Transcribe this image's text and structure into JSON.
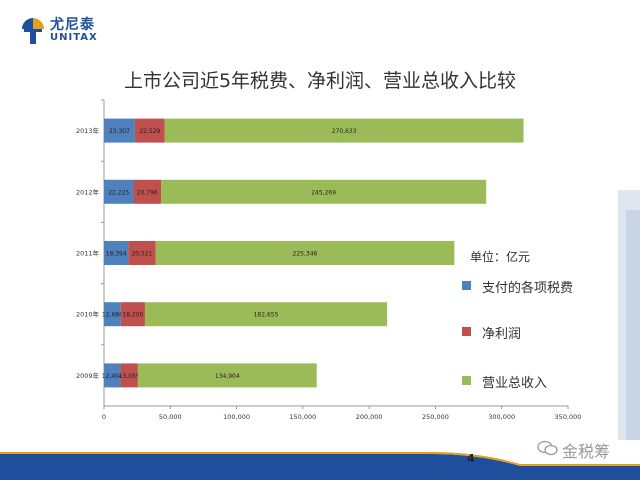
{
  "brand": {
    "name_cn": "尤尼泰",
    "name_en": "UNITAX",
    "color": "#1f4e9c",
    "accent": "#e0a020"
  },
  "title": "上市公司近5年税费、净利润、营业总收入比较",
  "unit": "单位：亿元",
  "page_number": "4",
  "watermark": "金税筹",
  "colors": {
    "tax": "#4f81bd",
    "profit": "#c0504d",
    "revenue": "#9bbb59"
  },
  "chart_data": {
    "type": "bar",
    "orientation": "horizontal",
    "stacked": true,
    "title": "上市公司近5年税费、净利润、营业总收入比较",
    "categories": [
      "2013年",
      "2012年",
      "2011年",
      "2010年",
      "2009年"
    ],
    "series": [
      {
        "name": "支付的各项税费",
        "color": "#4f81bd",
        "values": [
          23307,
          22225,
          18394,
          12686,
          12494
        ]
      },
      {
        "name": "净利润",
        "color": "#c0504d",
        "values": [
          22529,
          20796,
          20521,
          18200,
          13055
        ]
      },
      {
        "name": "营业总收入",
        "color": "#9bbb59",
        "values": [
          270633,
          245269,
          225346,
          182655,
          134904
        ]
      }
    ],
    "value_labels": [
      [
        "23,307",
        "22,225",
        "18,394",
        "12,686",
        "12,494"
      ],
      [
        "22,529",
        "20,796",
        "20,521",
        "18,200",
        "13,055"
      ],
      [
        "270,633",
        "245,269",
        "225,346",
        "182,655",
        "134,904"
      ]
    ],
    "xlim": [
      0,
      350000
    ],
    "xticks": [
      0,
      50000,
      100000,
      150000,
      200000,
      250000,
      300000,
      350000
    ],
    "xtick_labels": [
      "0",
      "50,000",
      "100,000",
      "150,000",
      "200,000",
      "250,000",
      "300,000",
      "350,000"
    ],
    "grid": false,
    "legend_position": "right",
    "xlabel": "",
    "ylabel": ""
  }
}
